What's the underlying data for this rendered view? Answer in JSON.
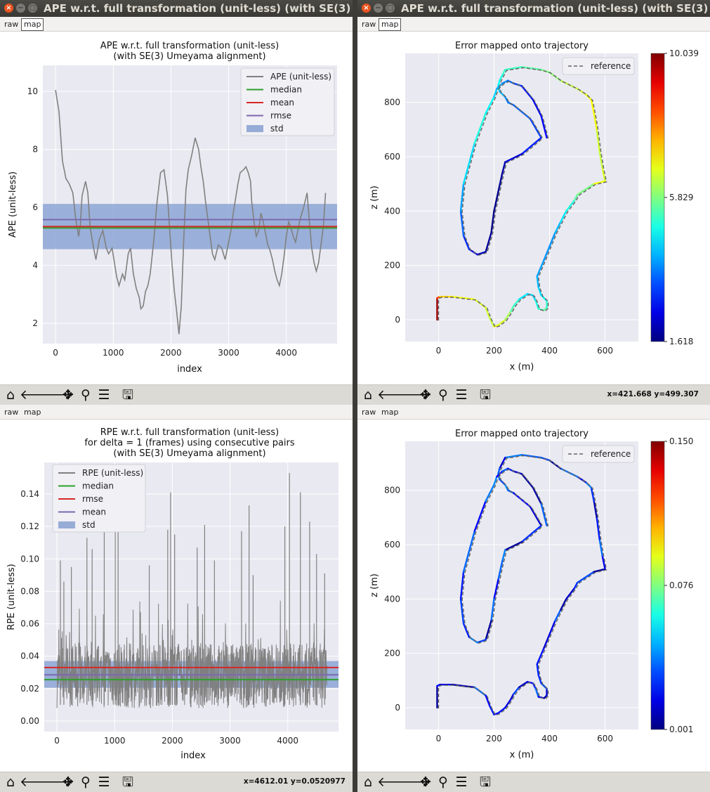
{
  "windows": [
    {
      "title": "APE w.r.t. full transformation (unit-less) (with SE(3) Umeyama alignment)",
      "menu": [
        "raw",
        "map"
      ],
      "active_menu": "map",
      "coords": ""
    },
    {
      "title": "APE w.r.t. full transformation (unit-less) (with SE(3) Umeyama alignment)",
      "menu": [
        "raw",
        "map"
      ],
      "active_menu": "map",
      "coords": "x=421.668     y=499.307"
    },
    {
      "title": "",
      "menu": [
        "raw",
        "map"
      ],
      "active_menu": "raw",
      "coords": "x=4612.01     y=0.0520977"
    },
    {
      "title": "",
      "menu": [
        "raw",
        "map"
      ],
      "active_menu": "raw",
      "coords": ""
    }
  ],
  "toolbar_icons": [
    "home-icon",
    "back-icon",
    "forward-icon",
    "pan-icon",
    "zoom-icon",
    "configure-icon",
    "save-icon"
  ],
  "colors": {
    "raw_line": "#808080",
    "median": "#2ca02c",
    "mean_ape": "#d62728",
    "rmse_ape": "#7b68b0",
    "rmse_rpe": "#d62728",
    "mean_rpe": "#7b68b0",
    "std_fill": "#7f9bd0",
    "axes_bg": "#e9e9f1",
    "grid": "#ffffff"
  },
  "chart_data": [
    {
      "type": "line",
      "title": "APE w.r.t. full transformation (unit-less)\n(with SE(3) Umeyama alignment)",
      "xlabel": "index",
      "ylabel": "APE (unit-less)",
      "xlim": [
        -220,
        4880
      ],
      "ylim": [
        1.3,
        10.9
      ],
      "xticks": [
        0,
        1000,
        2000,
        3000,
        4000
      ],
      "yticks": [
        2,
        4,
        6,
        8,
        10
      ],
      "legend": "top-right",
      "legend_entries": [
        "APE (unit-less)",
        "median",
        "mean",
        "rmse",
        "std"
      ],
      "series": [
        {
          "name": "APE (unit-less)",
          "x": [
            0,
            60,
            120,
            180,
            240,
            300,
            350,
            400,
            430,
            460,
            520,
            560,
            600,
            660,
            700,
            760,
            820,
            880,
            920,
            980,
            1020,
            1060,
            1100,
            1160,
            1200,
            1260,
            1300,
            1350,
            1400,
            1450,
            1480,
            1520,
            1560,
            1600,
            1640,
            1700,
            1760,
            1820,
            1880,
            1940,
            1980,
            2020,
            2060,
            2100,
            2140,
            2180,
            2220,
            2260,
            2300,
            2360,
            2420,
            2480,
            2520,
            2560,
            2600,
            2640,
            2680,
            2720,
            2760,
            2820,
            2880,
            2940,
            3000,
            3040,
            3080,
            3120,
            3160,
            3200,
            3260,
            3300,
            3340,
            3380,
            3400,
            3440,
            3480,
            3520,
            3560,
            3600,
            3640,
            3680,
            3720,
            3760,
            3800,
            3840,
            3880,
            3920,
            3960,
            4000,
            4040,
            4080,
            4120,
            4160,
            4200,
            4240,
            4300,
            4360,
            4400,
            4440,
            4480,
            4520,
            4560,
            4600,
            4640,
            4680
          ],
          "values": [
            10.05,
            9.3,
            7.6,
            7.0,
            6.8,
            6.5,
            5.6,
            5.0,
            5.4,
            6.4,
            6.9,
            6.5,
            5.3,
            4.6,
            4.2,
            4.9,
            5.2,
            4.6,
            4.4,
            4.6,
            4.1,
            3.6,
            3.3,
            3.7,
            3.5,
            4.4,
            4.6,
            3.7,
            3.2,
            2.9,
            2.5,
            2.6,
            3.1,
            3.3,
            3.7,
            4.8,
            6.2,
            7.2,
            7.3,
            6.4,
            5.2,
            4.0,
            3.1,
            2.4,
            1.63,
            2.6,
            4.8,
            6.6,
            7.3,
            7.8,
            8.4,
            8.0,
            7.4,
            6.9,
            6.2,
            5.6,
            5.0,
            4.4,
            4.2,
            4.7,
            4.6,
            4.2,
            4.8,
            5.2,
            5.8,
            6.3,
            6.8,
            7.2,
            7.3,
            7.4,
            7.2,
            6.9,
            6.2,
            5.5,
            5.0,
            5.2,
            5.8,
            5.5,
            5.1,
            4.7,
            4.5,
            4.2,
            3.8,
            3.5,
            3.3,
            3.7,
            4.3,
            5.0,
            5.5,
            5.3,
            5.0,
            4.8,
            5.2,
            5.6,
            6.0,
            6.5,
            5.5,
            4.6,
            4.1,
            3.8,
            4.1,
            4.7,
            5.3,
            6.5
          ]
        }
      ],
      "stats": {
        "median": 5.29,
        "mean": 5.34,
        "rmse": 5.58,
        "std_low": 4.56,
        "std_high": 6.12
      }
    },
    {
      "type": "line",
      "title": "Error mapped onto trajectory",
      "xlabel": "x (m)",
      "ylabel": "z (m)",
      "xlim": [
        -120,
        720
      ],
      "ylim": [
        -80,
        980
      ],
      "xticks": [
        0,
        200,
        400,
        600
      ],
      "yticks": [
        0,
        200,
        400,
        600,
        800
      ],
      "legend": "top-right",
      "legend_entries": [
        "reference"
      ],
      "colorbar": {
        "min": 1.618,
        "mid": 5.829,
        "max": 10.039,
        "labels": [
          "10.039",
          "5.829",
          "1.618"
        ]
      },
      "series": [
        {
          "name": "reference",
          "style": "dashed",
          "x": [
            -5,
            -5,
            5,
            50,
            130,
            170,
            185,
            200,
            215,
            240,
            260,
            270,
            290,
            320,
            340,
            350,
            360,
            380,
            390,
            390,
            370,
            360,
            355,
            380,
            400,
            420,
            440,
            460,
            490,
            500
          ],
          "y": [
            0,
            80,
            85,
            85,
            75,
            45,
            5,
            -25,
            -20,
            0,
            30,
            50,
            75,
            95,
            90,
            70,
            40,
            35,
            45,
            70,
            90,
            120,
            160,
            220,
            270,
            320,
            360,
            400,
            440,
            460
          ],
          "err": [
            9.8,
            8.5,
            7.2,
            6.8,
            6.6,
            6.5,
            6.4,
            6.8,
            6.6,
            6.2,
            5.5,
            5.2,
            4.6,
            4.4,
            4.5,
            5.0,
            5.3,
            5.6,
            5.2,
            4.8,
            4.5,
            4.2,
            4.0,
            3.9,
            3.9,
            4.2,
            4.6,
            5.0,
            5.5,
            5.8
          ]
        },
        {
          "name": "",
          "style": "solid",
          "x": [
            500,
            560,
            600,
            590,
            580,
            570,
            560,
            550,
            530,
            500,
            440,
            400,
            370,
            300,
            240,
            230,
            220,
            215,
            220,
            240,
            250,
            270,
            330,
            370,
            300,
            240,
            230,
            215,
            200,
            190,
            170,
            140,
            110,
            90,
            80,
            90,
            130,
            170,
            200,
            210,
            230,
            250,
            270,
            300,
            340,
            370,
            390
          ],
          "y": [
            460,
            500,
            510,
            560,
            620,
            700,
            760,
            810,
            830,
            850,
            880,
            910,
            920,
            930,
            920,
            900,
            880,
            860,
            840,
            820,
            800,
            790,
            740,
            670,
            610,
            580,
            540,
            470,
            400,
            320,
            250,
            240,
            260,
            310,
            400,
            500,
            650,
            760,
            820,
            850,
            870,
            880,
            870,
            860,
            810,
            750,
            670
          ],
          "err": [
            5.8,
            6.8,
            6.6,
            6.4,
            6.5,
            6.8,
            6.9,
            6.8,
            6.6,
            6.4,
            6.0,
            5.8,
            5.5,
            5.3,
            5.2,
            5.0,
            4.8,
            4.5,
            4.2,
            3.8,
            3.6,
            3.5,
            3.2,
            2.9,
            2.4,
            2.0,
            1.8,
            1.7,
            1.7,
            1.8,
            2.1,
            2.5,
            3.0,
            3.5,
            4.0,
            4.5,
            5.0,
            4.8,
            4.4,
            4.1,
            3.8,
            3.5,
            3.2,
            2.8,
            2.6,
            2.7,
            3.0
          ]
        }
      ]
    },
    {
      "type": "line",
      "title": "RPE w.r.t. full transformation (unit-less)\nfor delta = 1 (frames) using consecutive pairs\n(with SE(3) Umeyama alignment)",
      "xlabel": "index",
      "ylabel": "RPE (unit-less)",
      "xlim": [
        -220,
        4880
      ],
      "ylim": [
        -0.0065,
        0.1595
      ],
      "xticks": [
        0,
        1000,
        2000,
        3000,
        4000
      ],
      "yticks": [
        0.0,
        0.02,
        0.04,
        0.06,
        0.08,
        0.1,
        0.12,
        0.14
      ],
      "legend": "top-left",
      "legend_entries": [
        "RPE (unit-less)",
        "median",
        "rmse",
        "mean",
        "std"
      ],
      "series": [
        {
          "name": "RPE (unit-less)",
          "note": "dense noisy signal, ~4700 samples, peaks listed",
          "peaks_x": [
            60,
            120,
            250,
            520,
            610,
            820,
            1010,
            1060,
            1600,
            1920,
            1970,
            2040,
            2430,
            2560,
            2730,
            3200,
            3330,
            3400,
            3950,
            4030,
            4220,
            4380,
            4500,
            4640
          ],
          "peaks_y": [
            0.099,
            0.086,
            0.095,
            0.113,
            0.106,
            0.12,
            0.137,
            0.117,
            0.096,
            0.118,
            0.141,
            0.115,
            0.107,
            0.121,
            0.099,
            0.117,
            0.133,
            0.09,
            0.12,
            0.153,
            0.141,
            0.123,
            0.103,
            0.091
          ]
        }
      ],
      "stats": {
        "median": 0.0255,
        "rmse": 0.033,
        "mean": 0.0285,
        "std_low": 0.0205,
        "std_high": 0.037
      }
    },
    {
      "type": "line",
      "title": "Error mapped onto trajectory",
      "xlabel": "x (m)",
      "ylabel": "z (m)",
      "xlim": [
        -120,
        720
      ],
      "ylim": [
        -80,
        980
      ],
      "xticks": [
        0,
        200,
        400,
        600
      ],
      "yticks": [
        0,
        200,
        400,
        600,
        800
      ],
      "legend": "top-right",
      "legend_entries": [
        "reference"
      ],
      "colorbar": {
        "min": 0.001,
        "mid": 0.076,
        "max": 0.15,
        "labels": [
          "0.150",
          "0.076",
          "0.001"
        ]
      }
    }
  ]
}
